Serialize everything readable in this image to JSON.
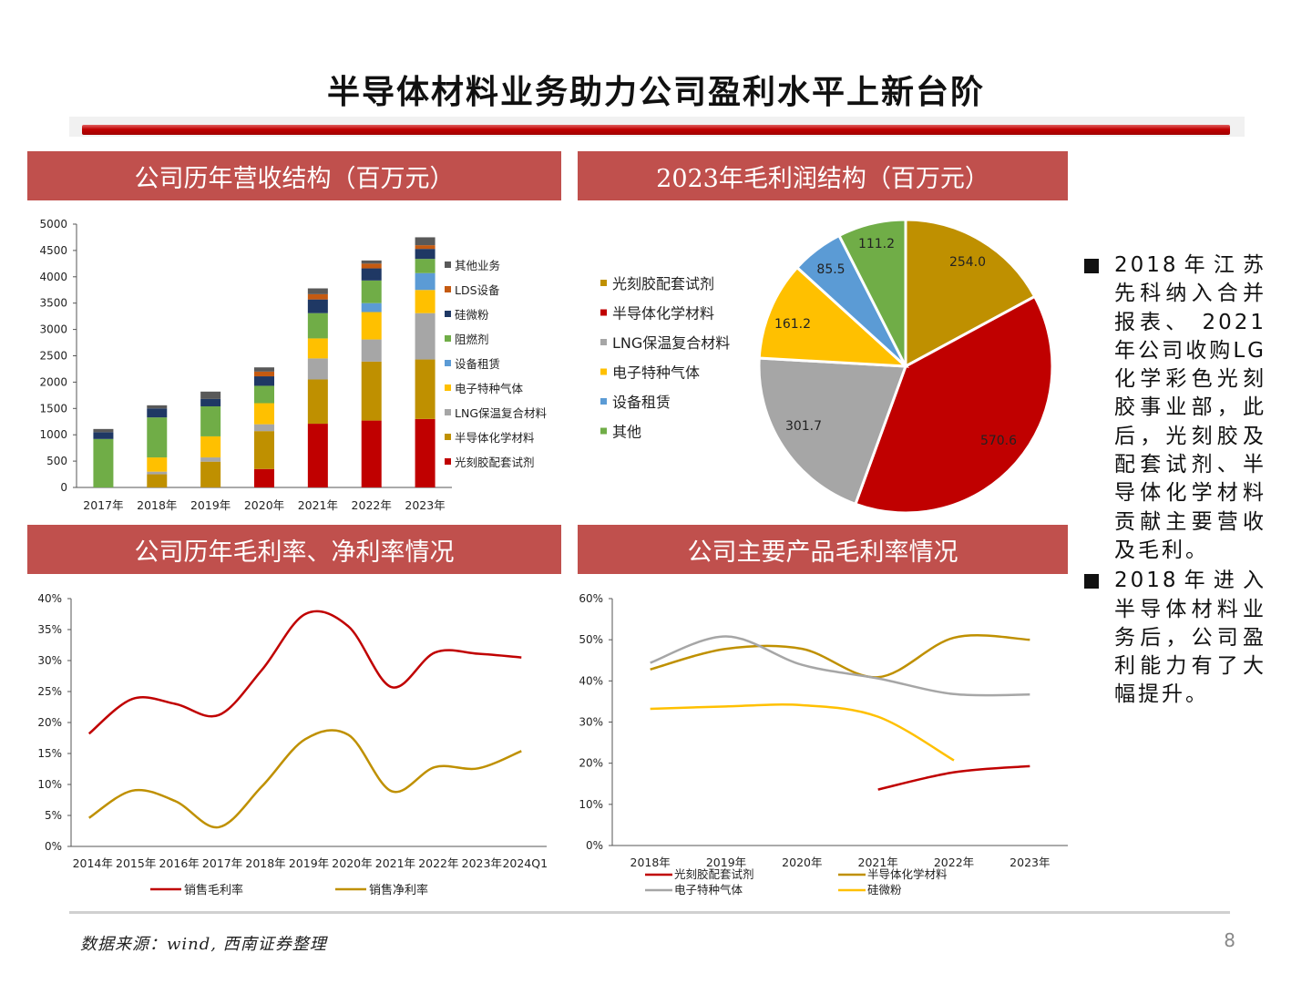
{
  "slide": {
    "title": "半导体材料业务助力公司盈利水平上新台阶",
    "source": "数据来源：wind, 西南证券整理",
    "page_number": "8",
    "bullets": [
      "2018年江苏先科纳入合并报表、 2021年公司收购LG化学彩色光刻胶事业部，此后，光刻胶及配套试剂、半导体化学材料贡献主要营收及毛利。",
      "2018年进入半导体材料业务后，公司盈利能力有了大幅提升。"
    ]
  },
  "panels": {
    "revenue_title": "公司历年营收结构（百万元）",
    "pie_title": "2023年毛利润结构（百万元）",
    "margin_title": "公司历年毛利率、净利率情况",
    "product_title": "公司主要产品毛利率情况"
  },
  "chart_data": [
    {
      "type": "bar",
      "stacked": true,
      "categories": [
        "2017年",
        "2018年",
        "2019年",
        "2020年",
        "2021年",
        "2022年",
        "2023年"
      ],
      "ylim": [
        0,
        5000
      ],
      "yticks": [
        0,
        500,
        1000,
        1500,
        2000,
        2500,
        3000,
        3500,
        4000,
        4500,
        5000
      ],
      "legend_position": "right",
      "series": [
        {
          "name": "光刻胶配套试剂",
          "color": "#c00000",
          "values": [
            0,
            0,
            0,
            350,
            1210,
            1270,
            1300
          ]
        },
        {
          "name": "半导体化学材料",
          "color": "#bf9000",
          "values": [
            0,
            250,
            490,
            720,
            840,
            1120,
            1130
          ]
        },
        {
          "name": "LNG保温复合材料",
          "color": "#a6a6a6",
          "values": [
            0,
            50,
            80,
            130,
            400,
            420,
            880
          ]
        },
        {
          "name": "电子特种气体",
          "color": "#ffc000",
          "values": [
            0,
            270,
            400,
            400,
            380,
            520,
            440
          ]
        },
        {
          "name": "设备租赁",
          "color": "#5b9bd5",
          "values": [
            0,
            0,
            0,
            0,
            0,
            170,
            320
          ]
        },
        {
          "name": "阻燃剂",
          "color": "#70ad47",
          "values": [
            920,
            760,
            570,
            330,
            480,
            430,
            270
          ]
        },
        {
          "name": "硅微粉",
          "color": "#1f3864",
          "values": [
            130,
            170,
            140,
            180,
            260,
            230,
            190
          ]
        },
        {
          "name": "LDS设备",
          "color": "#c55a11",
          "values": [
            0,
            0,
            0,
            90,
            100,
            90,
            70
          ]
        },
        {
          "name": "其他业务",
          "color": "#595959",
          "values": [
            60,
            60,
            140,
            80,
            110,
            60,
            150
          ]
        }
      ]
    },
    {
      "type": "pie",
      "legend_position": "left",
      "slices": [
        {
          "name": "光刻胶配套试剂",
          "value": 254.0,
          "label": "254.0",
          "color": "#bf9000"
        },
        {
          "name": "半导体化学材料",
          "value": 570.6,
          "label": "570.6",
          "color": "#c00000"
        },
        {
          "name": "LNG保温复合材料",
          "value": 301.7,
          "label": "301.7",
          "color": "#a6a6a6"
        },
        {
          "name": "电子特种气体",
          "value": 161.2,
          "label": "161.2",
          "color": "#ffc000"
        },
        {
          "name": "设备租赁",
          "value": 85.5,
          "label": "85.5",
          "color": "#5b9bd5"
        },
        {
          "name": "其他",
          "value": 111.2,
          "label": "111.2",
          "color": "#70ad47"
        }
      ]
    },
    {
      "type": "line",
      "categories": [
        "2014年",
        "2015年",
        "2016年",
        "2017年",
        "2018年",
        "2019年",
        "2020年",
        "2021年",
        "2022年",
        "2023年",
        "2024Q1"
      ],
      "ylim": [
        0,
        40
      ],
      "yticks": [
        0,
        5,
        10,
        15,
        20,
        25,
        30,
        35,
        40
      ],
      "ytick_labels": [
        "0%",
        "5%",
        "10%",
        "15%",
        "20%",
        "25%",
        "30%",
        "35%",
        "40%"
      ],
      "legend_position": "bottom",
      "series": [
        {
          "name": "销售毛利率",
          "color": "#c00000",
          "values": [
            18.2,
            23.8,
            23.0,
            21.2,
            28.5,
            37.5,
            35.5,
            25.7,
            31.3,
            31.1,
            30.5
          ]
        },
        {
          "name": "销售净利率",
          "color": "#bf9000",
          "values": [
            4.6,
            9.0,
            7.3,
            3.1,
            9.7,
            17.3,
            18.0,
            8.9,
            12.8,
            12.6,
            15.4
          ]
        }
      ]
    },
    {
      "type": "line",
      "categories": [
        "2018年",
        "2019年",
        "2020年",
        "2021年",
        "2022年",
        "2023年"
      ],
      "ylim": [
        0,
        60
      ],
      "yticks": [
        0,
        10,
        20,
        30,
        40,
        50,
        60
      ],
      "ytick_labels": [
        "0%",
        "10%",
        "20%",
        "30%",
        "40%",
        "50%",
        "60%"
      ],
      "legend_position": "bottom",
      "series": [
        {
          "name": "光刻胶配套试剂",
          "color": "#c00000",
          "values": [
            null,
            null,
            null,
            13.6,
            17.8,
            19.3
          ]
        },
        {
          "name": "半导体化学材料",
          "color": "#bf9000",
          "values": [
            42.8,
            47.8,
            47.8,
            40.9,
            50.5,
            50.0
          ]
        },
        {
          "name": "电子特种气体",
          "color": "#a6a6a6",
          "values": [
            44.4,
            50.8,
            43.9,
            40.6,
            36.8,
            36.7
          ]
        },
        {
          "name": "硅微粉",
          "color": "#ffc000",
          "values": [
            33.2,
            33.8,
            34.1,
            31.3,
            20.7,
            null
          ]
        }
      ]
    }
  ]
}
